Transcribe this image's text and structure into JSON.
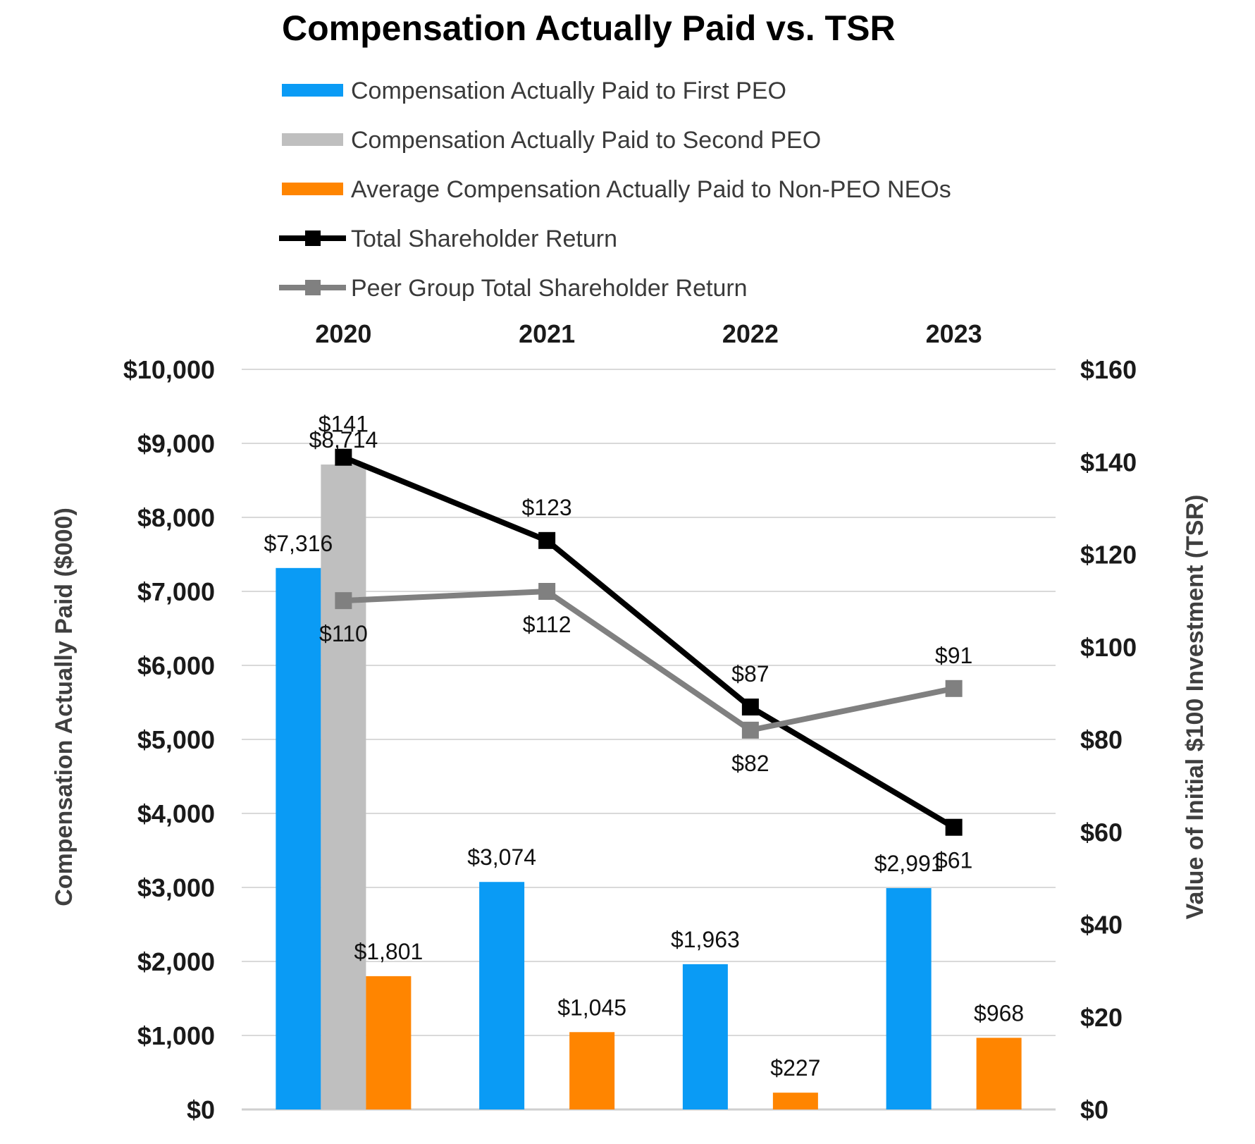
{
  "chart_data": {
    "type": "bar",
    "title": "Compensation Actually Paid vs. TSR",
    "categories": [
      "2020",
      "2021",
      "2022",
      "2023"
    ],
    "ylabel": "Compensation Actually Paid ($000)",
    "y2label": "Value of Initial $100 Investment (TSR)",
    "ylim": [
      0,
      10000
    ],
    "y2lim": [
      0,
      160
    ],
    "yticks": [
      "$0",
      "$1,000",
      "$2,000",
      "$3,000",
      "$4,000",
      "$5,000",
      "$6,000",
      "$7,000",
      "$8,000",
      "$9,000",
      "$10,000"
    ],
    "y2ticks": [
      "$0",
      "$20",
      "$40",
      "$60",
      "$80",
      "$100",
      "$120",
      "$140",
      "$160"
    ],
    "grid": true,
    "legend_position": "top",
    "bar_series": [
      {
        "name": "Compensation Actually Paid to First PEO",
        "color": "#0A9BF5",
        "values": [
          7316,
          3074,
          1963,
          2991
        ],
        "labels": [
          "$7,316",
          "$3,074",
          "$1,963",
          "$2,991"
        ]
      },
      {
        "name": "Compensation Actually Paid to Second PEO",
        "color": "#BFBFBF",
        "values": [
          8714,
          null,
          null,
          null
        ],
        "labels": [
          "$8,714",
          null,
          null,
          null
        ]
      },
      {
        "name": "Average Compensation Actually Paid to Non-PEO NEOs",
        "color": "#FF8500",
        "values": [
          1801,
          1045,
          227,
          968
        ],
        "labels": [
          "$1,801",
          "$1,045",
          "$227",
          "$968"
        ]
      }
    ],
    "line_series": [
      {
        "name": "Total Shareholder Return",
        "color": "#000000",
        "values": [
          141,
          123,
          87,
          61
        ],
        "labels": [
          "$141",
          "$123",
          "$87",
          "$61"
        ]
      },
      {
        "name": "Peer Group Total Shareholder Return",
        "color": "#808080",
        "values": [
          110,
          112,
          82,
          91
        ],
        "labels": [
          "$110",
          "$112",
          "$82",
          "$91"
        ]
      }
    ]
  }
}
